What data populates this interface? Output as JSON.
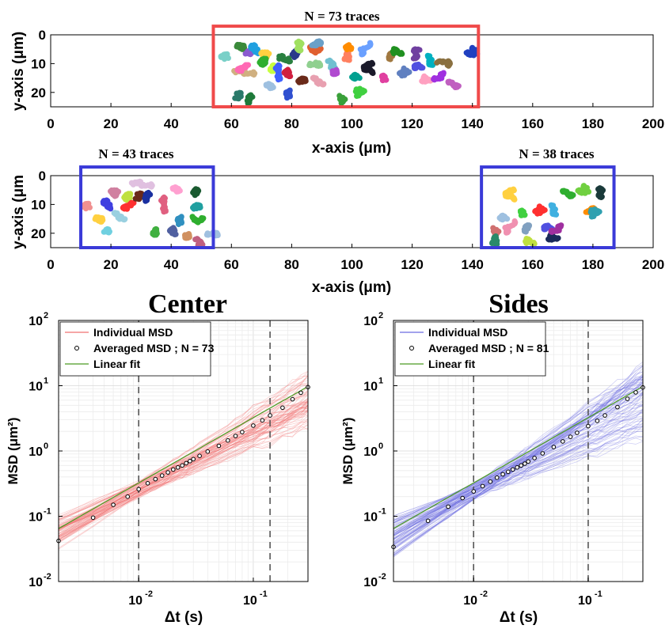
{
  "chart_data": [
    {
      "type": "scatter",
      "panel": "tracks-top",
      "title": "N = 73 traces",
      "xlabel": "x-axis (μm)",
      "ylabel": "y-axis (μm)",
      "xlim": [
        0,
        200
      ],
      "ylim": [
        0,
        25
      ],
      "y_reversed": true,
      "xticks": [
        "0",
        "20",
        "40",
        "60",
        "80",
        "100",
        "120",
        "140",
        "160",
        "180",
        "200"
      ],
      "yticks": [
        "0",
        "10",
        "20"
      ],
      "region": {
        "x": [
          54,
          142
        ],
        "y": [
          -3,
          25
        ],
        "color": "#f04a4a"
      },
      "traces": [
        {
          "x": 59,
          "y": 8,
          "c": "#7ad0c8"
        },
        {
          "x": 62,
          "y": 4,
          "c": "#3a8a3a"
        },
        {
          "x": 65,
          "y": 6,
          "c": "#8a5ad0"
        },
        {
          "x": 68,
          "y": 4,
          "c": "#20a0e0"
        },
        {
          "x": 72,
          "y": 6,
          "c": "#ffd040"
        },
        {
          "x": 70,
          "y": 10,
          "c": "#2fae2f"
        },
        {
          "x": 61,
          "y": 13,
          "c": "#d0b080"
        },
        {
          "x": 66,
          "y": 11,
          "c": "#ff69b4"
        },
        {
          "x": 63,
          "y": 20,
          "c": "#2a7a6a"
        },
        {
          "x": 67,
          "y": 22,
          "c": "#1f7a3a"
        },
        {
          "x": 74,
          "y": 12,
          "c": "#c8ff40"
        },
        {
          "x": 75,
          "y": 16,
          "c": "#4060ff"
        },
        {
          "x": 78,
          "y": 13,
          "c": "#d02040"
        },
        {
          "x": 73,
          "y": 19,
          "c": "#9ec0e0"
        },
        {
          "x": 79,
          "y": 20,
          "c": "#3050d0"
        },
        {
          "x": 80,
          "y": 7,
          "c": "#2a3a8a"
        },
        {
          "x": 84,
          "y": 15,
          "c": "#6a2a1a"
        },
        {
          "x": 89,
          "y": 6,
          "c": "#e06030"
        },
        {
          "x": 92,
          "y": 9,
          "c": "#70c0d0"
        },
        {
          "x": 86,
          "y": 11,
          "c": "#90d090"
        },
        {
          "x": 90,
          "y": 17,
          "c": "#e8a0b0"
        },
        {
          "x": 94,
          "y": 13,
          "c": "#b04ad0"
        },
        {
          "x": 96,
          "y": 21,
          "c": "#3aa03a"
        },
        {
          "x": 99,
          "y": 8,
          "c": "#ff8060"
        },
        {
          "x": 101,
          "y": 14,
          "c": "#00a090"
        },
        {
          "x": 104,
          "y": 7,
          "c": "#6aa0ff"
        },
        {
          "x": 107,
          "y": 13,
          "c": "#1a1a2a"
        },
        {
          "x": 110,
          "y": 15,
          "c": "#e040a0"
        },
        {
          "x": 113,
          "y": 6,
          "c": "#a07840"
        },
        {
          "x": 116,
          "y": 7,
          "c": "#209020"
        },
        {
          "x": 117,
          "y": 14,
          "c": "#6080c0"
        },
        {
          "x": 121,
          "y": 12,
          "c": "#5050e0"
        },
        {
          "x": 125,
          "y": 7,
          "c": "#00b0c0"
        },
        {
          "x": 126,
          "y": 16,
          "c": "#ffa0c0"
        },
        {
          "x": 131,
          "y": 13,
          "c": "#a030e0"
        },
        {
          "x": 134,
          "y": 18,
          "c": "#c060c0"
        },
        {
          "x": 138,
          "y": 6,
          "c": "#2040c0"
        },
        {
          "x": 87,
          "y": 4,
          "c": "#6aa0c8"
        },
        {
          "x": 103,
          "y": 19,
          "c": "#40d040"
        },
        {
          "x": 83,
          "y": 5,
          "c": "#a0e060"
        },
        {
          "x": 98,
          "y": 4,
          "c": "#ff8c00"
        },
        {
          "x": 128,
          "y": 10,
          "c": "#8a7040"
        },
        {
          "x": 122,
          "y": 5,
          "c": "#7040a0"
        },
        {
          "x": 77,
          "y": 8,
          "c": "#2a8040"
        }
      ]
    },
    {
      "type": "scatter",
      "panel": "tracks-bottom",
      "titles": [
        "N = 43 traces",
        "N = 38 traces"
      ],
      "xlabel": "x-axis (μm)",
      "ylabel": "y-axis (μm",
      "xlim": [
        0,
        200
      ],
      "ylim": [
        0,
        25
      ],
      "y_reversed": true,
      "xticks": [
        "0",
        "20",
        "40",
        "60",
        "80",
        "100",
        "120",
        "140",
        "160",
        "180",
        "200"
      ],
      "yticks": [
        "0",
        "10",
        "20"
      ],
      "regions": [
        {
          "x": [
            10,
            54
          ],
          "y": [
            -3,
            25
          ],
          "color": "#3a3ad8"
        },
        {
          "x": [
            143,
            187
          ],
          "y": [
            -3,
            25
          ],
          "color": "#3a3ad8"
        }
      ],
      "traces": [
        {
          "x": 13,
          "y": 11,
          "c": "#f09090"
        },
        {
          "x": 15,
          "y": 15,
          "c": "#ffd040"
        },
        {
          "x": 18,
          "y": 19,
          "c": "#70d0e0"
        },
        {
          "x": 19,
          "y": 9,
          "c": "#4040e0"
        },
        {
          "x": 22,
          "y": 5,
          "c": "#d080a0"
        },
        {
          "x": 25,
          "y": 8,
          "c": "#c0e040"
        },
        {
          "x": 27,
          "y": 3,
          "c": "#e0c0e0"
        },
        {
          "x": 28,
          "y": 10,
          "c": "#ff3030"
        },
        {
          "x": 30,
          "y": 6,
          "c": "#6a2a1a"
        },
        {
          "x": 33,
          "y": 7,
          "c": "#1a30a0"
        },
        {
          "x": 35,
          "y": 20,
          "c": "#40b040"
        },
        {
          "x": 37,
          "y": 13,
          "c": "#e06080"
        },
        {
          "x": 40,
          "y": 19,
          "c": "#5060a0"
        },
        {
          "x": 42,
          "y": 6,
          "c": "#ffa0d0"
        },
        {
          "x": 43,
          "y": 15,
          "c": "#3090c0"
        },
        {
          "x": 47,
          "y": 6,
          "c": "#1a5a30"
        },
        {
          "x": 49,
          "y": 10,
          "c": "#20a0a0"
        },
        {
          "x": 50,
          "y": 16,
          "c": "#2fae2f"
        },
        {
          "x": 48,
          "y": 22,
          "c": "#c06080"
        },
        {
          "x": 52,
          "y": 21,
          "c": "#a0c0e0"
        },
        {
          "x": 24,
          "y": 15,
          "c": "#9ad0e0"
        },
        {
          "x": 45,
          "y": 21,
          "c": "#d09060"
        },
        {
          "x": 147,
          "y": 18,
          "c": "#d07070"
        },
        {
          "x": 148,
          "y": 23,
          "c": "#2a8a6a"
        },
        {
          "x": 150,
          "y": 14,
          "c": "#9ec0e0"
        },
        {
          "x": 152,
          "y": 20,
          "c": "#f090b0"
        },
        {
          "x": 154,
          "y": 8,
          "c": "#ffd040"
        },
        {
          "x": 156,
          "y": 13,
          "c": "#40d040"
        },
        {
          "x": 158,
          "y": 17,
          "c": "#80a0c0"
        },
        {
          "x": 160,
          "y": 24,
          "c": "#c0e040"
        },
        {
          "x": 162,
          "y": 13,
          "c": "#ff3030"
        },
        {
          "x": 164,
          "y": 19,
          "c": "#5050e0"
        },
        {
          "x": 166,
          "y": 10,
          "c": "#40b0e0"
        },
        {
          "x": 168,
          "y": 22,
          "c": "#1a2a5a"
        },
        {
          "x": 170,
          "y": 17,
          "c": "#a030a0"
        },
        {
          "x": 172,
          "y": 7,
          "c": "#2fae2f"
        },
        {
          "x": 175,
          "y": 5,
          "c": "#70d040"
        },
        {
          "x": 178,
          "y": 13,
          "c": "#ff8c00"
        },
        {
          "x": 181,
          "y": 12,
          "c": "#30a0b0"
        },
        {
          "x": 183,
          "y": 7,
          "c": "#1a3a3a"
        }
      ]
    },
    {
      "type": "line",
      "panel": "msd-center",
      "title": "Center",
      "xlabel": "Δt (s)",
      "ylabel": "MSD (μm²)",
      "xscale": "log",
      "yscale": "log",
      "xlim": [
        0.002,
        0.3
      ],
      "ylim": [
        0.01,
        100
      ],
      "xticks": [
        "10^-2",
        "10^-1"
      ],
      "yticks": [
        "10^-2",
        "10^-1",
        "10^0",
        "10^1",
        "10^2"
      ],
      "vlines": [
        0.01,
        0.14
      ],
      "legend": {
        "placement": "top-left",
        "entries": [
          "Individual MSD",
          "Averaged MSD ; N = 73",
          "Linear fit"
        ]
      },
      "series": [
        {
          "name": "Individual MSD",
          "color": "#f07070",
          "count": 73,
          "slope_range": [
            0.7,
            1.2
          ]
        },
        {
          "name": "Averaged MSD ; N = 73",
          "color": "#000000",
          "x": [
            0.002,
            0.004,
            0.006,
            0.008,
            0.01,
            0.012,
            0.014,
            0.016,
            0.018,
            0.02,
            0.022,
            0.024,
            0.026,
            0.028,
            0.03,
            0.034,
            0.04,
            0.05,
            0.06,
            0.07,
            0.08,
            0.1,
            0.12,
            0.14,
            0.18,
            0.22,
            0.26,
            0.3
          ],
          "y": [
            0.042,
            0.095,
            0.15,
            0.2,
            0.26,
            0.32,
            0.37,
            0.42,
            0.47,
            0.52,
            0.56,
            0.6,
            0.65,
            0.7,
            0.75,
            0.84,
            0.98,
            1.2,
            1.45,
            1.7,
            1.95,
            2.45,
            2.95,
            3.5,
            4.6,
            6.2,
            7.8,
            9.5
          ]
        },
        {
          "name": "Linear fit",
          "color": "#4a9a20",
          "slope": 1,
          "intercept": 27
        }
      ]
    },
    {
      "type": "line",
      "panel": "msd-sides",
      "title": "Sides",
      "xlabel": "Δt (s)",
      "ylabel": "MSD (μm²)",
      "xscale": "log",
      "yscale": "log",
      "xlim": [
        0.002,
        0.3
      ],
      "ylim": [
        0.01,
        100
      ],
      "xticks": [
        "10^-2",
        "10^-1"
      ],
      "yticks": [
        "10^-2",
        "10^-1",
        "10^0",
        "10^1",
        "10^2"
      ],
      "vlines": [
        0.01,
        0.1
      ],
      "legend": {
        "placement": "top-left",
        "entries": [
          "Individual MSD",
          "Averaged MSD ; N = 81",
          "Linear fit"
        ]
      },
      "series": [
        {
          "name": "Individual MSD",
          "color": "#6a6ae0",
          "count": 81,
          "slope_range": [
            0.6,
            1.3
          ]
        },
        {
          "name": "Averaged MSD ; N = 81",
          "color": "#000000",
          "x": [
            0.002,
            0.004,
            0.006,
            0.008,
            0.01,
            0.012,
            0.014,
            0.016,
            0.018,
            0.02,
            0.022,
            0.024,
            0.026,
            0.028,
            0.03,
            0.034,
            0.04,
            0.05,
            0.06,
            0.07,
            0.08,
            0.1,
            0.12,
            0.14,
            0.18,
            0.22,
            0.26,
            0.3
          ],
          "y": [
            0.034,
            0.085,
            0.14,
            0.19,
            0.24,
            0.29,
            0.34,
            0.39,
            0.44,
            0.48,
            0.52,
            0.56,
            0.6,
            0.64,
            0.69,
            0.78,
            0.92,
            1.15,
            1.4,
            1.65,
            1.9,
            2.4,
            2.9,
            3.5,
            4.7,
            6.3,
            7.9,
            9.4
          ]
        },
        {
          "name": "Linear fit",
          "color": "#4a9a20",
          "slope": 1,
          "intercept": 27
        }
      ]
    }
  ]
}
